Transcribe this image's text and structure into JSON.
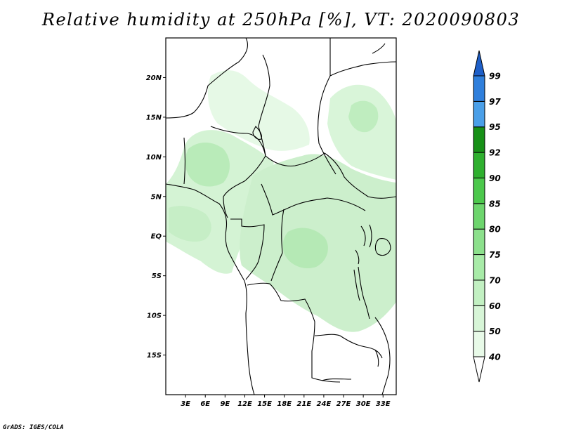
{
  "title": "Relative humidity at 250hPa [%], VT: 2020090803",
  "credit": "GrADS: IGES/COLA",
  "map": {
    "lon_range": [
      0,
      35
    ],
    "lat_range": [
      -20,
      25
    ],
    "lon_ticks": [
      "3E",
      "6E",
      "9E",
      "12E",
      "15E",
      "18E",
      "21E",
      "24E",
      "27E",
      "30E",
      "33E"
    ],
    "lat_ticks": [
      "20N",
      "15N",
      "10N",
      "5N",
      "EQ",
      "5S",
      "10S",
      "15S"
    ]
  },
  "colorbar": {
    "levels": [
      "40",
      "50",
      "60",
      "70",
      "75",
      "80",
      "85",
      "90",
      "92",
      "95",
      "97",
      "99"
    ],
    "colors": [
      "#ffffff",
      "#e8fae8",
      "#d7f5d7",
      "#c2f0c2",
      "#a8eba8",
      "#8ce08c",
      "#6dd56d",
      "#4cc84c",
      "#2fb02f",
      "#179017",
      "#4a9fe8",
      "#2f7fdc",
      "#1e5fc8"
    ]
  }
}
